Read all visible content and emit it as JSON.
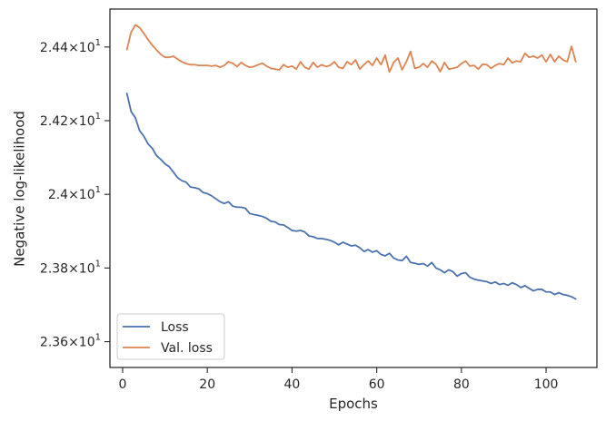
{
  "chart_data": {
    "type": "line",
    "xlabel": "Epochs",
    "ylabel": "Negative log-likelihood",
    "xlim": [
      -3,
      112
    ],
    "ylim": [
      23.53,
      24.503
    ],
    "x_ticks": [
      0,
      20,
      40,
      60,
      80,
      100
    ],
    "x_tick_labels": [
      "0",
      "20",
      "40",
      "60",
      "80",
      "100"
    ],
    "y_ticks": [
      23.6,
      23.8,
      24.0,
      24.2,
      24.4
    ],
    "y_tick_labels": [
      {
        "mant": "2.36",
        "exp": "1"
      },
      {
        "mant": "2.38",
        "exp": "1"
      },
      {
        "mant": "2.4",
        "exp": "1"
      },
      {
        "mant": "2.42",
        "exp": "1"
      },
      {
        "mant": "2.44",
        "exp": "1"
      }
    ],
    "grid": false,
    "legend_position": "lower-left",
    "colors": {
      "loss": "#4c72b0",
      "val_loss": "#dd8452"
    },
    "series": [
      {
        "name": "Loss",
        "key": "loss",
        "x": [
          1,
          2,
          3,
          4,
          5,
          6,
          7,
          8,
          9,
          10,
          11,
          12,
          13,
          14,
          15,
          16,
          17,
          18,
          19,
          20,
          21,
          22,
          23,
          24,
          25,
          26,
          27,
          28,
          29,
          30,
          31,
          32,
          33,
          34,
          35,
          36,
          37,
          38,
          39,
          40,
          41,
          42,
          43,
          44,
          45,
          46,
          47,
          48,
          49,
          50,
          51,
          52,
          53,
          54,
          55,
          56,
          57,
          58,
          59,
          60,
          61,
          62,
          63,
          64,
          65,
          66,
          67,
          68,
          69,
          70,
          71,
          72,
          73,
          74,
          75,
          76,
          77,
          78,
          79,
          80,
          81,
          82,
          83,
          84,
          85,
          86,
          87,
          88,
          89,
          90,
          91,
          92,
          93,
          94,
          95,
          96,
          97,
          98,
          99,
          100,
          101,
          102,
          103,
          104,
          105,
          106,
          107
        ],
        "y": [
          24.274,
          24.225,
          24.208,
          24.173,
          24.158,
          24.137,
          24.125,
          24.105,
          24.095,
          24.083,
          24.075,
          24.06,
          24.045,
          24.037,
          24.033,
          24.02,
          24.018,
          24.015,
          24.005,
          24.002,
          23.996,
          23.988,
          23.98,
          23.975,
          23.98,
          23.968,
          23.965,
          23.965,
          23.962,
          23.948,
          23.945,
          23.943,
          23.94,
          23.935,
          23.927,
          23.925,
          23.918,
          23.917,
          23.91,
          23.902,
          23.9,
          23.902,
          23.898,
          23.887,
          23.885,
          23.88,
          23.88,
          23.878,
          23.875,
          23.87,
          23.863,
          23.87,
          23.865,
          23.86,
          23.862,
          23.855,
          23.845,
          23.85,
          23.843,
          23.847,
          23.837,
          23.833,
          23.84,
          23.827,
          23.822,
          23.82,
          23.832,
          23.815,
          23.813,
          23.81,
          23.812,
          23.805,
          23.815,
          23.8,
          23.795,
          23.787,
          23.795,
          23.79,
          23.778,
          23.785,
          23.787,
          23.775,
          23.77,
          23.767,
          23.765,
          23.763,
          23.758,
          23.762,
          23.755,
          23.758,
          23.753,
          23.76,
          23.755,
          23.747,
          23.752,
          23.745,
          23.738,
          23.742,
          23.742,
          23.735,
          23.735,
          23.728,
          23.733,
          23.728,
          23.726,
          23.722,
          23.716
        ]
      },
      {
        "name": "Val. loss",
        "key": "val_loss",
        "x": [
          1,
          2,
          3,
          4,
          5,
          6,
          7,
          8,
          9,
          10,
          11,
          12,
          13,
          14,
          15,
          16,
          17,
          18,
          19,
          20,
          21,
          22,
          23,
          24,
          25,
          26,
          27,
          28,
          29,
          30,
          31,
          32,
          33,
          34,
          35,
          36,
          37,
          38,
          39,
          40,
          41,
          42,
          43,
          44,
          45,
          46,
          47,
          48,
          49,
          50,
          51,
          52,
          53,
          54,
          55,
          56,
          57,
          58,
          59,
          60,
          61,
          62,
          63,
          64,
          65,
          66,
          67,
          68,
          69,
          70,
          71,
          72,
          73,
          74,
          75,
          76,
          77,
          78,
          79,
          80,
          81,
          82,
          83,
          84,
          85,
          86,
          87,
          88,
          89,
          90,
          91,
          92,
          93,
          94,
          95,
          96,
          97,
          98,
          99,
          100,
          101,
          102,
          103,
          104,
          105,
          106,
          107
        ],
        "y": [
          24.393,
          24.44,
          24.46,
          24.453,
          24.437,
          24.42,
          24.405,
          24.392,
          24.38,
          24.372,
          24.372,
          24.375,
          24.367,
          24.36,
          24.355,
          24.352,
          24.352,
          24.35,
          24.35,
          24.35,
          24.348,
          24.35,
          24.345,
          24.35,
          24.36,
          24.356,
          24.347,
          24.358,
          24.35,
          24.345,
          24.347,
          24.352,
          24.356,
          24.348,
          24.342,
          24.34,
          24.338,
          24.352,
          24.345,
          24.348,
          24.34,
          24.36,
          24.345,
          24.34,
          24.358,
          24.345,
          24.352,
          24.347,
          24.35,
          24.36,
          24.345,
          24.342,
          24.36,
          24.352,
          24.365,
          24.34,
          24.352,
          24.362,
          24.35,
          24.37,
          24.352,
          24.378,
          24.332,
          24.358,
          24.37,
          24.338,
          24.36,
          24.388,
          24.342,
          24.345,
          24.355,
          24.345,
          24.362,
          24.353,
          24.333,
          24.358,
          24.34,
          24.342,
          24.345,
          24.355,
          24.362,
          24.348,
          24.35,
          24.34,
          24.353,
          24.352,
          24.342,
          24.35,
          24.355,
          24.352,
          24.37,
          24.357,
          24.362,
          24.36,
          24.383,
          24.372,
          24.375,
          24.37,
          24.378,
          24.36,
          24.38,
          24.36,
          24.375,
          24.365,
          24.36,
          24.402,
          24.36
        ]
      }
    ]
  }
}
